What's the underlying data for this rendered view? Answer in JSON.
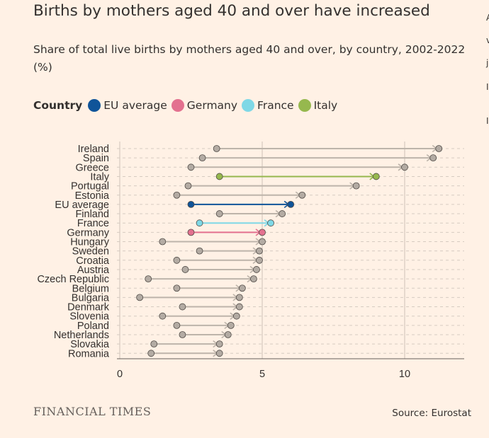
{
  "title": "Births by mothers aged 40 and over have increased",
  "subtitle": "Share of total live births by mothers aged 40 and over, by country, 2002-2022 (%)",
  "legend": {
    "title": "Country",
    "items": [
      {
        "label": "EU average",
        "color": "#0f5499"
      },
      {
        "label": "Germany",
        "color": "#e3718f"
      },
      {
        "label": "France",
        "color": "#7fd8e6"
      },
      {
        "label": "Italy",
        "color": "#96b84e"
      }
    ]
  },
  "source": "Source: Eurostat",
  "brand": "FINANCIAL TIMES",
  "edge_fragments": [
    "A",
    "v",
    "j",
    "I",
    "I"
  ],
  "colors": {
    "background": "#fff1e5",
    "default_series": "#bdb4aa",
    "default_marker": "#b3aba3",
    "eu_average": "#0f5499",
    "germany": "#e3718f",
    "france": "#7fd8e6",
    "italy": "#96b84e"
  },
  "chart_data": {
    "type": "dumbbell",
    "title": "Births by mothers aged 40 and over have increased",
    "xlabel": "",
    "ylabel": "",
    "xlim": [
      0,
      12
    ],
    "xticks": [
      0,
      5,
      10
    ],
    "series_names": [
      "2002",
      "2022"
    ],
    "categories": [
      "Ireland",
      "Spain",
      "Greece",
      "Italy",
      "Portugal",
      "Estonia",
      "EU average",
      "Finland",
      "France",
      "Germany",
      "Hungary",
      "Sweden",
      "Croatia",
      "Austria",
      "Czech Republic",
      "Belgium",
      "Bulgaria",
      "Denmark",
      "Slovenia",
      "Poland",
      "Netherlands",
      "Slovakia",
      "Romania"
    ],
    "rows": [
      {
        "label": "Ireland",
        "start": 3.4,
        "end": 11.2,
        "highlight": ""
      },
      {
        "label": "Spain",
        "start": 2.9,
        "end": 11.0,
        "highlight": ""
      },
      {
        "label": "Greece",
        "start": 2.5,
        "end": 10.0,
        "highlight": ""
      },
      {
        "label": "Italy",
        "start": 3.5,
        "end": 9.0,
        "highlight": "italy"
      },
      {
        "label": "Portugal",
        "start": 2.4,
        "end": 8.3,
        "highlight": ""
      },
      {
        "label": "Estonia",
        "start": 2.0,
        "end": 6.4,
        "highlight": ""
      },
      {
        "label": "EU average",
        "start": 2.5,
        "end": 6.0,
        "highlight": "eu_average"
      },
      {
        "label": "Finland",
        "start": 3.5,
        "end": 5.7,
        "highlight": ""
      },
      {
        "label": "France",
        "start": 2.8,
        "end": 5.3,
        "highlight": "france"
      },
      {
        "label": "Germany",
        "start": 2.5,
        "end": 5.0,
        "highlight": "germany"
      },
      {
        "label": "Hungary",
        "start": 1.5,
        "end": 5.0,
        "highlight": ""
      },
      {
        "label": "Sweden",
        "start": 2.8,
        "end": 4.9,
        "highlight": ""
      },
      {
        "label": "Croatia",
        "start": 2.0,
        "end": 4.9,
        "highlight": ""
      },
      {
        "label": "Austria",
        "start": 2.3,
        "end": 4.8,
        "highlight": ""
      },
      {
        "label": "Czech Republic",
        "start": 1.0,
        "end": 4.7,
        "highlight": ""
      },
      {
        "label": "Belgium",
        "start": 2.0,
        "end": 4.3,
        "highlight": ""
      },
      {
        "label": "Bulgaria",
        "start": 0.7,
        "end": 4.2,
        "highlight": ""
      },
      {
        "label": "Denmark",
        "start": 2.2,
        "end": 4.2,
        "highlight": ""
      },
      {
        "label": "Slovenia",
        "start": 1.5,
        "end": 4.1,
        "highlight": ""
      },
      {
        "label": "Poland",
        "start": 2.0,
        "end": 3.9,
        "highlight": ""
      },
      {
        "label": "Netherlands",
        "start": 2.2,
        "end": 3.8,
        "highlight": ""
      },
      {
        "label": "Slovakia",
        "start": 1.2,
        "end": 3.5,
        "highlight": ""
      },
      {
        "label": "Romania",
        "start": 1.1,
        "end": 3.5,
        "highlight": ""
      }
    ]
  }
}
